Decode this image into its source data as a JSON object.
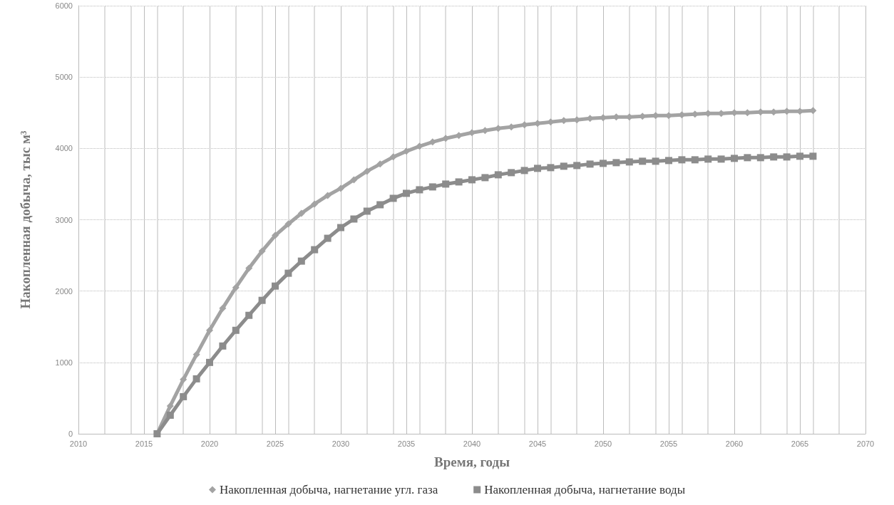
{
  "chart_data": {
    "type": "line",
    "xlabel": "Время, годы",
    "ylabel": "Накопленная добыча, тыс м³",
    "xlim": [
      2010,
      2070
    ],
    "xticks": [
      2010,
      2015,
      2020,
      2025,
      2030,
      2035,
      2040,
      2045,
      2050,
      2055,
      2060,
      2065,
      2070
    ],
    "ylim": [
      0,
      6000
    ],
    "yticks": [
      0,
      1000,
      2000,
      3000,
      4000,
      5000,
      6000
    ],
    "grid": true,
    "legend": "bottom",
    "line_style": "solid",
    "x": [
      2016,
      2017,
      2018,
      2019,
      2020,
      2021,
      2022,
      2023,
      2024,
      2025,
      2026,
      2027,
      2028,
      2029,
      2030,
      2031,
      2032,
      2033,
      2034,
      2035,
      2036,
      2037,
      2038,
      2039,
      2040,
      2041,
      2042,
      2043,
      2044,
      2045,
      2046,
      2047,
      2048,
      2049,
      2050,
      2051,
      2052,
      2053,
      2054,
      2055,
      2056,
      2057,
      2058,
      2059,
      2060,
      2061,
      2062,
      2063,
      2064,
      2065,
      2066
    ],
    "series": [
      {
        "name": "Накопленная добыча, нагнетание угл. газа",
        "color": "#a3a3a3",
        "marker": "diamond",
        "values": [
          0,
          390,
          760,
          1110,
          1450,
          1760,
          2050,
          2320,
          2560,
          2780,
          2940,
          3090,
          3220,
          3340,
          3440,
          3560,
          3680,
          3780,
          3880,
          3960,
          4030,
          4090,
          4140,
          4180,
          4220,
          4250,
          4280,
          4300,
          4330,
          4350,
          4370,
          4390,
          4400,
          4420,
          4430,
          4440,
          4440,
          4450,
          4460,
          4460,
          4470,
          4480,
          4490,
          4490,
          4500,
          4500,
          4510,
          4510,
          4520,
          4520,
          4530
        ]
      },
      {
        "name": "Накопленная добыча, нагнетание воды",
        "color": "#8c8c8c",
        "marker": "square",
        "values": [
          0,
          260,
          520,
          770,
          1000,
          1230,
          1450,
          1660,
          1870,
          2070,
          2250,
          2420,
          2580,
          2740,
          2890,
          3010,
          3120,
          3210,
          3300,
          3370,
          3420,
          3460,
          3500,
          3530,
          3560,
          3590,
          3630,
          3660,
          3690,
          3720,
          3730,
          3750,
          3760,
          3780,
          3790,
          3800,
          3810,
          3820,
          3820,
          3830,
          3840,
          3840,
          3850,
          3850,
          3860,
          3870,
          3870,
          3880,
          3880,
          3890,
          3890
        ]
      }
    ]
  }
}
